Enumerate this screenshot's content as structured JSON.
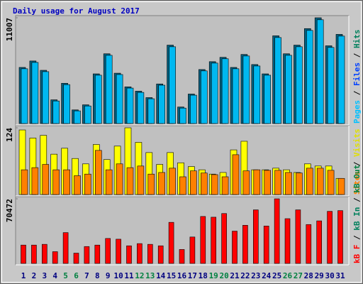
{
  "chart_data": [
    {
      "type": "bar",
      "title": "Daily usage for August 2017",
      "series": [
        {
          "color": "#006080",
          "values": [
            5840,
            6510,
            5540,
            2470,
            4190,
            1420,
            1950,
            5170,
            7260,
            5240,
            3820,
            3370,
            2700,
            4120,
            8160,
            1720,
            3070,
            5620,
            6440,
            6890,
            5840,
            7190,
            6140,
            5170,
            9130,
            7260,
            8160,
            9880,
            11007,
            8090,
            9280
          ]
        },
        {
          "color": "#00b8f0",
          "values": [
            5700,
            6360,
            5400,
            2350,
            4050,
            1320,
            1830,
            5030,
            7100,
            5100,
            3690,
            3240,
            2580,
            3990,
            7990,
            1610,
            2950,
            5480,
            6290,
            6740,
            5700,
            7030,
            5990,
            5030,
            8950,
            7100,
            7990,
            9690,
            10800,
            7920,
            9100
          ]
        }
      ],
      "ylim": [
        0,
        11007
      ],
      "yticks": [
        11007
      ],
      "legend": [
        {
          "label": "Pages",
          "color": "#00c0ff"
        },
        {
          "label": "Files",
          "color": "#0040ff"
        },
        {
          "label": "Hits",
          "color": "#00805c"
        }
      ],
      "legend_separator": " / "
    },
    {
      "type": "bar",
      "series": [
        {
          "color": "#ffff00",
          "values": [
            120,
            105,
            110,
            75,
            86,
            67,
            57,
            93,
            65,
            90,
            124,
            97,
            78,
            56,
            78,
            59,
            52,
            46,
            38,
            41,
            83,
            99,
            46,
            46,
            49,
            46,
            41,
            57,
            53,
            53,
            30
          ]
        },
        {
          "color": "#ff8000",
          "values": [
            46,
            50,
            56,
            46,
            46,
            35,
            38,
            82,
            46,
            57,
            50,
            53,
            38,
            41,
            49,
            33,
            44,
            40,
            37,
            33,
            74,
            44,
            46,
            45,
            45,
            41,
            40,
            49,
            49,
            45,
            30
          ]
        }
      ],
      "ylim": [
        0,
        124
      ],
      "yticks": [
        124
      ],
      "legend": [
        {
          "label": "Sites",
          "color": "#ff8000"
        },
        {
          "label": "Visits",
          "color": "#e0e000"
        }
      ],
      "legend_separator": " / "
    },
    {
      "type": "bar",
      "categories": [
        "1",
        "2",
        "3",
        "4",
        "5",
        "6",
        "7",
        "8",
        "9",
        "10",
        "11",
        "12",
        "13",
        "14",
        "15",
        "16",
        "17",
        "18",
        "19",
        "20",
        "21",
        "22",
        "23",
        "24",
        "25",
        "26",
        "27",
        "28",
        "29",
        "30",
        "31"
      ],
      "label_colors": [
        "#000080",
        "#000080",
        "#000080",
        "#000080",
        "#008040",
        "#008040",
        "#000080",
        "#000080",
        "#000080",
        "#000080",
        "#000080",
        "#008040",
        "#008040",
        "#000080",
        "#000080",
        "#000080",
        "#000080",
        "#000080",
        "#008040",
        "#008040",
        "#000080",
        "#000080",
        "#000080",
        "#000080",
        "#000080",
        "#008040",
        "#008040",
        "#000080",
        "#000080",
        "#000080",
        "#000080"
      ],
      "series": [
        {
          "color": "#ff0000",
          "values": [
            20000,
            20000,
            20800,
            12800,
            33600,
            11200,
            18400,
            20000,
            27200,
            26400,
            19200,
            21600,
            20800,
            19200,
            44800,
            15200,
            28800,
            51200,
            50400,
            54400,
            35200,
            41600,
            58400,
            40800,
            70472,
            48800,
            58400,
            42400,
            46400,
            56800,
            57600
          ]
        }
      ],
      "ylim": [
        0,
        70472
      ],
      "yticks": [
        70472
      ],
      "legend": [
        {
          "label": "kB F",
          "color": "#ff0000"
        },
        {
          "label": "kB In",
          "color": "#00805c"
        },
        {
          "label": "kB Out",
          "color": "#008040"
        }
      ],
      "legend_separator": " / "
    }
  ]
}
